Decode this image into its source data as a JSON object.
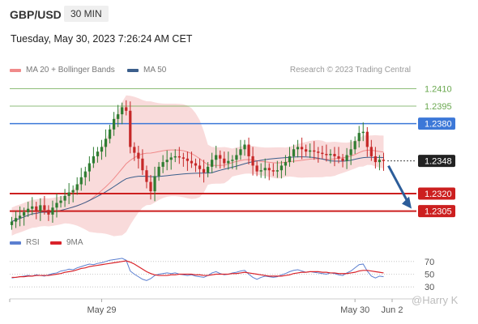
{
  "header": {
    "pair": "GBP/USD",
    "timeframe": "30 MIN",
    "datetime": "Tuesday, May 30, 2023 7:26:24 AM CET"
  },
  "legend": {
    "ma20": "MA 20 + Bollinger Bands",
    "ma50": "MA 50",
    "credit": "Research © 2023 Trading Central"
  },
  "rsi_legend": {
    "rsi": "RSI",
    "ma": "9MA"
  },
  "watermark": "@Harry K",
  "colors": {
    "ma20": "#f08a8a",
    "ma50": "#3c5f8c",
    "bull": "#2f7d32",
    "bear": "#c62828",
    "band": "#f8d7d7",
    "resistance_green": "#6aa84f",
    "level_blue": "#3c78d8",
    "level_red": "#cc1f1f",
    "current": "#222222",
    "rsi": "#5b7fd0",
    "rsi_ma": "#d9232a"
  },
  "chart_data": {
    "type": "candlestick",
    "price_levels": [
      {
        "value": 1.241,
        "label": "1.2410",
        "style": "green-line"
      },
      {
        "value": 1.2395,
        "label": "1.2395",
        "style": "green-line"
      },
      {
        "value": 1.238,
        "label": "1.2380",
        "style": "blue-box"
      },
      {
        "value": 1.2348,
        "label": "1.2348",
        "style": "current-price"
      },
      {
        "value": 1.232,
        "label": "1.2320",
        "style": "red-box"
      },
      {
        "value": 1.2305,
        "label": "1.2305",
        "style": "red-box"
      }
    ],
    "x_labels": [
      "May 29",
      "May 30",
      "Jun 2"
    ],
    "rsi_ticks": [
      "70",
      "50",
      "30"
    ],
    "price_range": [
      1.2295,
      1.242
    ],
    "closes": [
      1.2296,
      1.2299,
      1.2301,
      1.2304,
      1.2307,
      1.2309,
      1.2305,
      1.231,
      1.2306,
      1.2302,
      1.2308,
      1.2312,
      1.2314,
      1.2318,
      1.2321,
      1.2323,
      1.2328,
      1.2334,
      1.2339,
      1.2346,
      1.2352,
      1.2356,
      1.236,
      1.2367,
      1.2375,
      1.2384,
      1.2388,
      1.2394,
      1.2391,
      1.236,
      1.2355,
      1.235,
      1.234,
      1.233,
      1.2322,
      1.2335,
      1.2343,
      1.2347,
      1.2349,
      1.2351,
      1.2352,
      1.2351,
      1.235,
      1.2348,
      1.2346,
      1.2344,
      1.2341,
      1.2338,
      1.2343,
      1.2349,
      1.2353,
      1.235,
      1.2346,
      1.2348,
      1.2349,
      1.2353,
      1.2358,
      1.2362,
      1.2352,
      1.2344,
      1.2339,
      1.234,
      1.2342,
      1.234,
      1.2339,
      1.234,
      1.2344,
      1.2347,
      1.2352,
      1.2358,
      1.236,
      1.2358,
      1.2356,
      1.2357,
      1.2356,
      1.2355,
      1.2354,
      1.2353,
      1.2354,
      1.2352,
      1.235,
      1.2348,
      1.2353,
      1.2358,
      1.2365,
      1.2372,
      1.2373,
      1.236,
      1.2352,
      1.2347,
      1.2349,
      1.2348
    ],
    "rsi": [
      44,
      45,
      46,
      47,
      48,
      47,
      49,
      48,
      47,
      49,
      51,
      52,
      55,
      56,
      58,
      57,
      60,
      62,
      64,
      66,
      65,
      67,
      68,
      70,
      72,
      73,
      74,
      75,
      72,
      55,
      50,
      46,
      42,
      40,
      43,
      48,
      50,
      51,
      52,
      51,
      52,
      50,
      49,
      48,
      49,
      47,
      46,
      45,
      48,
      52,
      54,
      51,
      49,
      50,
      52,
      53,
      55,
      56,
      50,
      45,
      42,
      45,
      47,
      46,
      45,
      46,
      49,
      51,
      54,
      56,
      57,
      55,
      53,
      54,
      53,
      52,
      51,
      50,
      52,
      51,
      49,
      48,
      52,
      55,
      60,
      65,
      66,
      55,
      47,
      44,
      47,
      46
    ],
    "rsi_ma": [
      45,
      45,
      46,
      46,
      47,
      47,
      48,
      48,
      48,
      48,
      49,
      50,
      51,
      53,
      54,
      55,
      57,
      59,
      60,
      62,
      63,
      64,
      65,
      66,
      67,
      68,
      69,
      70,
      71,
      69,
      66,
      62,
      58,
      54,
      51,
      49,
      48,
      48,
      48,
      49,
      49,
      50,
      50,
      50,
      50,
      49,
      49,
      48,
      48,
      49,
      50,
      50,
      50,
      50,
      51,
      51,
      52,
      53,
      52,
      51,
      50,
      49,
      48,
      47,
      47,
      47,
      47,
      48,
      49,
      51,
      52,
      53,
      53,
      54,
      54,
      54,
      53,
      53,
      52,
      52,
      51,
      51,
      51,
      52,
      53,
      55,
      56,
      56,
      55,
      54,
      53,
      52
    ]
  }
}
